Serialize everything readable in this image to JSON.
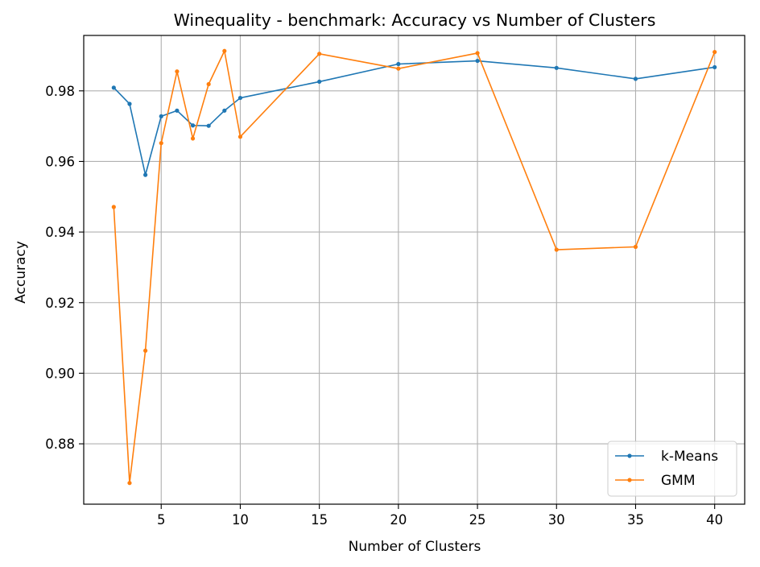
{
  "chart_data": {
    "type": "line",
    "title": "Winequality - benchmark: Accuracy vs Number of Clusters",
    "xlabel": "Number of Clusters",
    "ylabel": "Accuracy",
    "xlim": [
      0.1,
      41.9
    ],
    "ylim": [
      0.8629,
      0.9957
    ],
    "x_ticks": [
      5,
      10,
      15,
      20,
      25,
      30,
      35,
      40
    ],
    "y_ticks": [
      0.88,
      0.9,
      0.92,
      0.94,
      0.96,
      0.98
    ],
    "y_tick_labels": [
      "0.88",
      "0.90",
      "0.92",
      "0.94",
      "0.96",
      "0.98"
    ],
    "grid": true,
    "legend_position": "lower-right",
    "x": [
      2,
      3,
      4,
      5,
      6,
      7,
      8,
      9,
      10,
      15,
      20,
      25,
      30,
      35,
      40
    ],
    "series": [
      {
        "name": "k-Means",
        "color": "#1f77b4",
        "values": [
          0.9809,
          0.9763,
          0.9562,
          0.9728,
          0.9744,
          0.9702,
          0.9701,
          0.9744,
          0.978,
          0.9826,
          0.9876,
          0.9885,
          0.9865,
          0.9834,
          0.9867
        ]
      },
      {
        "name": "GMM",
        "color": "#ff7f0e",
        "values": [
          0.9471,
          0.8689,
          0.9064,
          0.9652,
          0.9855,
          0.9665,
          0.9819,
          0.9913,
          0.967,
          0.9905,
          0.9863,
          0.9907,
          0.935,
          0.9358,
          0.991
        ]
      }
    ]
  }
}
